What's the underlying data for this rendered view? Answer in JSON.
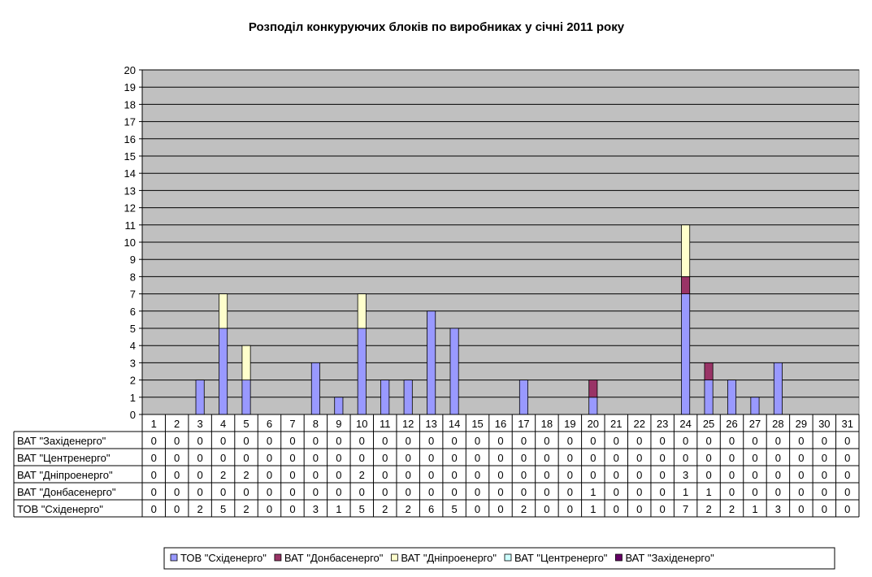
{
  "chart_data": {
    "type": "bar",
    "stacked": true,
    "title": "Розподіл конкуруючих блоків по виробниках у січні 2011 року",
    "categories": [
      "1",
      "2",
      "3",
      "4",
      "5",
      "6",
      "7",
      "8",
      "9",
      "10",
      "11",
      "12",
      "13",
      "14",
      "15",
      "16",
      "17",
      "18",
      "19",
      "20",
      "21",
      "22",
      "23",
      "24",
      "25",
      "26",
      "27",
      "28",
      "29",
      "30",
      "31"
    ],
    "ylim": [
      0,
      20
    ],
    "yticks": [
      0,
      1,
      2,
      3,
      4,
      5,
      6,
      7,
      8,
      9,
      10,
      11,
      12,
      13,
      14,
      15,
      16,
      17,
      18,
      19,
      20
    ],
    "grid": true,
    "legend_position": "bottom",
    "plot_background": "#c0c0c0",
    "series": [
      {
        "name": "ТОВ \"Східенерго\"",
        "color": "#9999ff",
        "values": [
          0,
          0,
          2,
          5,
          2,
          0,
          0,
          3,
          1,
          5,
          2,
          2,
          6,
          5,
          0,
          0,
          2,
          0,
          0,
          1,
          0,
          0,
          0,
          7,
          2,
          2,
          1,
          3,
          0,
          0,
          0
        ]
      },
      {
        "name": "ВАТ \"Донбасенерго\"",
        "color": "#993366",
        "values": [
          0,
          0,
          0,
          0,
          0,
          0,
          0,
          0,
          0,
          0,
          0,
          0,
          0,
          0,
          0,
          0,
          0,
          0,
          0,
          1,
          0,
          0,
          0,
          1,
          1,
          0,
          0,
          0,
          0,
          0,
          0
        ]
      },
      {
        "name": "ВАТ \"Дніпроенерго\"",
        "color": "#ffffcc",
        "values": [
          0,
          0,
          0,
          2,
          2,
          0,
          0,
          0,
          0,
          2,
          0,
          0,
          0,
          0,
          0,
          0,
          0,
          0,
          0,
          0,
          0,
          0,
          0,
          3,
          0,
          0,
          0,
          0,
          0,
          0,
          0
        ]
      },
      {
        "name": "ВАТ \"Центренерго\"",
        "color": "#ccffff",
        "values": [
          0,
          0,
          0,
          0,
          0,
          0,
          0,
          0,
          0,
          0,
          0,
          0,
          0,
          0,
          0,
          0,
          0,
          0,
          0,
          0,
          0,
          0,
          0,
          0,
          0,
          0,
          0,
          0,
          0,
          0,
          0
        ]
      },
      {
        "name": "ВАТ \"Західенерго\"",
        "color": "#660066",
        "values": [
          0,
          0,
          0,
          0,
          0,
          0,
          0,
          0,
          0,
          0,
          0,
          0,
          0,
          0,
          0,
          0,
          0,
          0,
          0,
          0,
          0,
          0,
          0,
          0,
          0,
          0,
          0,
          0,
          0,
          0,
          0
        ]
      }
    ],
    "table_row_order": [
      "ВАТ \"Західенерго\"",
      "ВАТ \"Центренерго\"",
      "ВАТ \"Дніпроенерго\"",
      "ВАТ \"Донбасенерго\"",
      "ТОВ \"Східенерго\""
    ],
    "legend_order": [
      "ТОВ \"Східенерго\"",
      "ВАТ \"Донбасенерго\"",
      "ВАТ \"Дніпроенерго\"",
      "ВАТ \"Центренерго\"",
      "ВАТ \"Західенерго\""
    ]
  }
}
